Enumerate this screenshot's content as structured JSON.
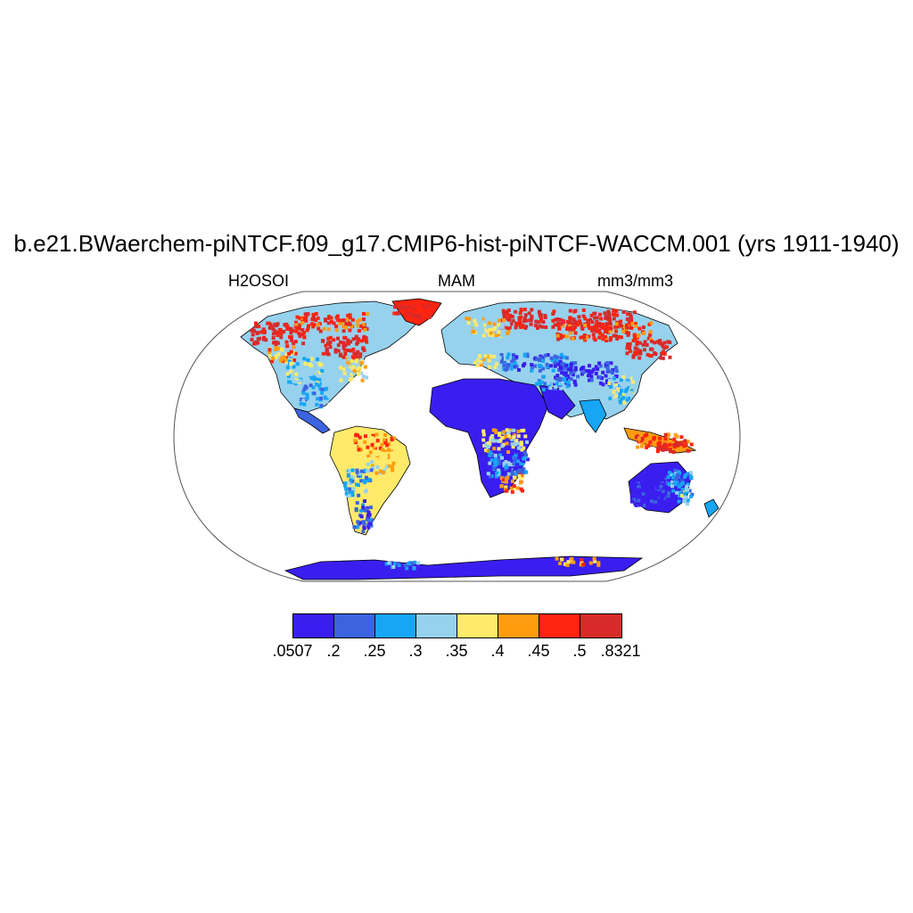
{
  "title": "b.e21.BWaerchem-piNTCF.f09_g17.CMIP6-hist-piNTCF-WACCM.001 (yrs 1911-1940)",
  "subtitle_left": "H2OSOI",
  "subtitle_center": "MAM",
  "subtitle_right": "mm3/mm3",
  "colorbar": {
    "colors": [
      "#3a1ef0",
      "#3c64e0",
      "#16a6f5",
      "#96d2ee",
      "#ffea6a",
      "#ff9c10",
      "#ff2410",
      "#d92a2a"
    ],
    "labels": [
      ".0507",
      ".2",
      ".25",
      ".3",
      ".35",
      ".4",
      ".45",
      ".5",
      ".8321"
    ]
  },
  "map_colors": {
    "ocean": "#ffffff",
    "coastline": "#000000",
    "frame": "#555555"
  }
}
